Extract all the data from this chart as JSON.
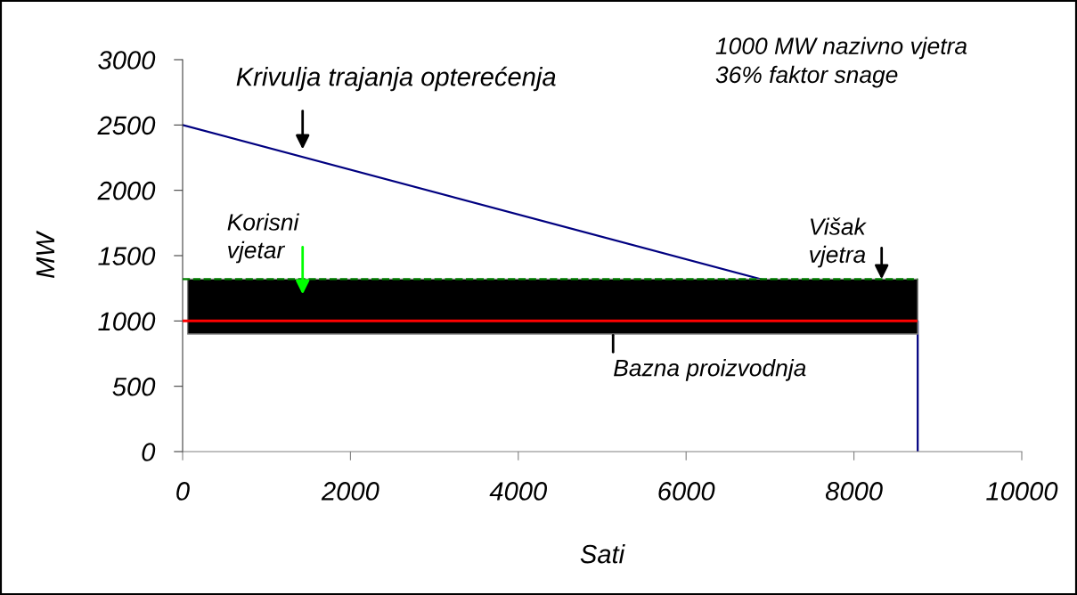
{
  "chart_data": {
    "type": "line",
    "xlabel": "Sati",
    "ylabel": "MW",
    "xlim": [
      0,
      10000
    ],
    "xticks": [
      0,
      2000,
      4000,
      6000,
      8000,
      10000
    ],
    "ylim": [
      0,
      3000
    ],
    "yticks": [
      0,
      500,
      1000,
      1500,
      2000,
      2500,
      3000
    ],
    "series": [
      {
        "color": "#000080",
        "x": [
          0,
          8760,
          8760
        ],
        "values": [
          2500,
          1000,
          0
        ]
      },
      {
        "color": "#000000",
        "x": [
          60,
          8760
        ],
        "values": [
          null,
          null
        ],
        "lower": [
          900,
          900
        ],
        "upper": [
          1320,
          1320
        ]
      },
      {
        "color": "#008000",
        "line_style": "dashed",
        "x": [
          0,
          8760
        ],
        "values": [
          1320,
          1320
        ]
      },
      {
        "color": "#ff0000",
        "x": [
          0,
          8740
        ],
        "values": [
          1000,
          1000
        ]
      }
    ],
    "annotations": [
      {
        "text": "Krivulja trajanja opterećenja",
        "x": 1430,
        "y": 2260
      },
      {
        "text": "Korisni\nvjetar",
        "x": 1430,
        "y": 1320
      },
      {
        "text": "Višak\nvjetra",
        "x": 8330,
        "y": 1320
      },
      {
        "text": "Bazna proizvodnja",
        "x": 5130,
        "y": 1000
      },
      "1000 MW nazivno vjetra\n36% faktor snage"
    ]
  }
}
